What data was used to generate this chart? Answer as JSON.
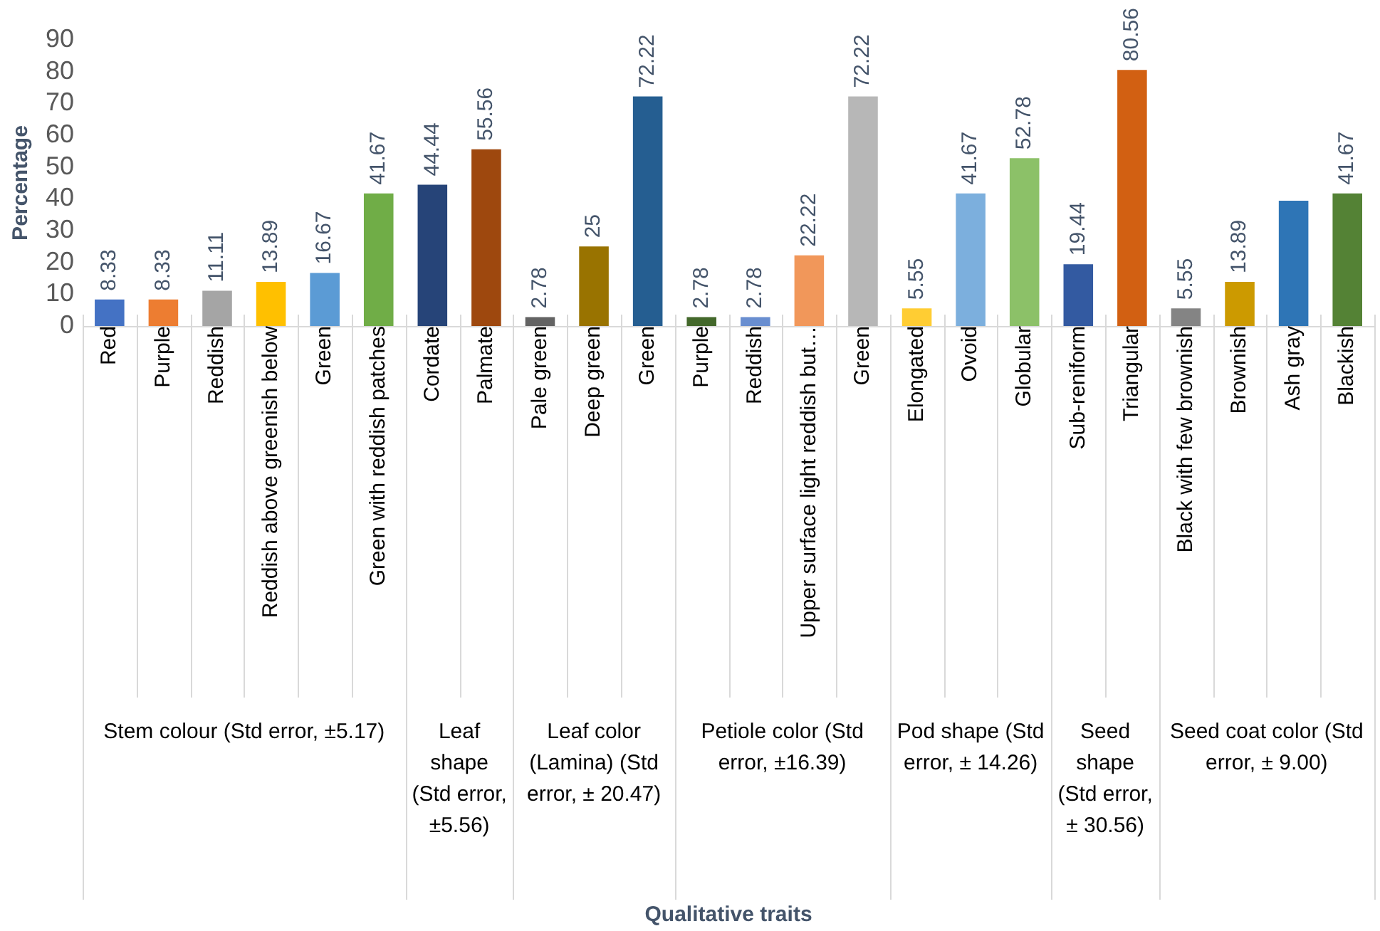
{
  "chart_data": {
    "type": "bar",
    "ylabel": "Percentage",
    "categories": [
      "Red",
      "Purple",
      "Reddish",
      "Reddish above greenish below",
      "Green",
      "Green with reddish patches",
      "Cordate",
      "Palmate",
      "Pale green",
      "Deep green",
      "Green",
      "Purple",
      "Reddish",
      "Upper surface light reddish but…",
      "Green",
      "Elongated",
      "Ovoid",
      "Globular",
      "Sub-reniform",
      "Triangular",
      "Black with few brownish",
      "Brownish",
      "Ash gray",
      "Blackish"
    ],
    "values": [
      8.33,
      8.33,
      11.11,
      13.89,
      16.67,
      41.67,
      44.44,
      55.56,
      2.78,
      25,
      72.22,
      2.78,
      2.78,
      22.22,
      72.22,
      5.55,
      41.67,
      52.78,
      19.44,
      80.56,
      5.55,
      13.89,
      39.4,
      41.67
    ],
    "value_labels": [
      "8.33",
      "8.33",
      "11.11",
      "13.89",
      "16.67",
      "41.67",
      "44.44",
      "55.56",
      "2.78",
      "25",
      "72.22",
      "2.78",
      "2.78",
      "22.22",
      "72.22",
      "5.55",
      "41.67",
      "52.78",
      "19.44",
      "80.56",
      "5.55",
      "13.89",
      null,
      "41.67"
    ],
    "colors": [
      "#4472c4",
      "#ed7d31",
      "#a5a5a5",
      "#ffc000",
      "#5b9bd5",
      "#70ad47",
      "#264478",
      "#9e480e",
      "#636363",
      "#997300",
      "#255e91",
      "#43682b",
      "#698ed0",
      "#f1975a",
      "#b7b7b7",
      "#ffcd33",
      "#7cafdd",
      "#8cc168",
      "#335aa1",
      "#d26012",
      "#848484",
      "#cc9a00",
      "#2e75b6",
      "#548235"
    ],
    "ylim": [
      0,
      90
    ],
    "yticks": [
      0,
      10,
      20,
      30,
      40,
      50,
      60,
      70,
      80,
      90
    ],
    "grid": false,
    "legend": false,
    "annotations": [
      "Stem colour (Std error, ±5.17)",
      "Leaf shape (Std error, ±5.56)",
      "Leaf color (Lamina) (Std error, ± 20.47)",
      "Petiole color (Std error, ±16.39)",
      "Pod shape (Std error, ± 14.26)",
      "Seed shape (Std error, ± 30.56)",
      "Seed coat color (Std error, ± 9.00)",
      "Qualitative traits"
    ]
  }
}
